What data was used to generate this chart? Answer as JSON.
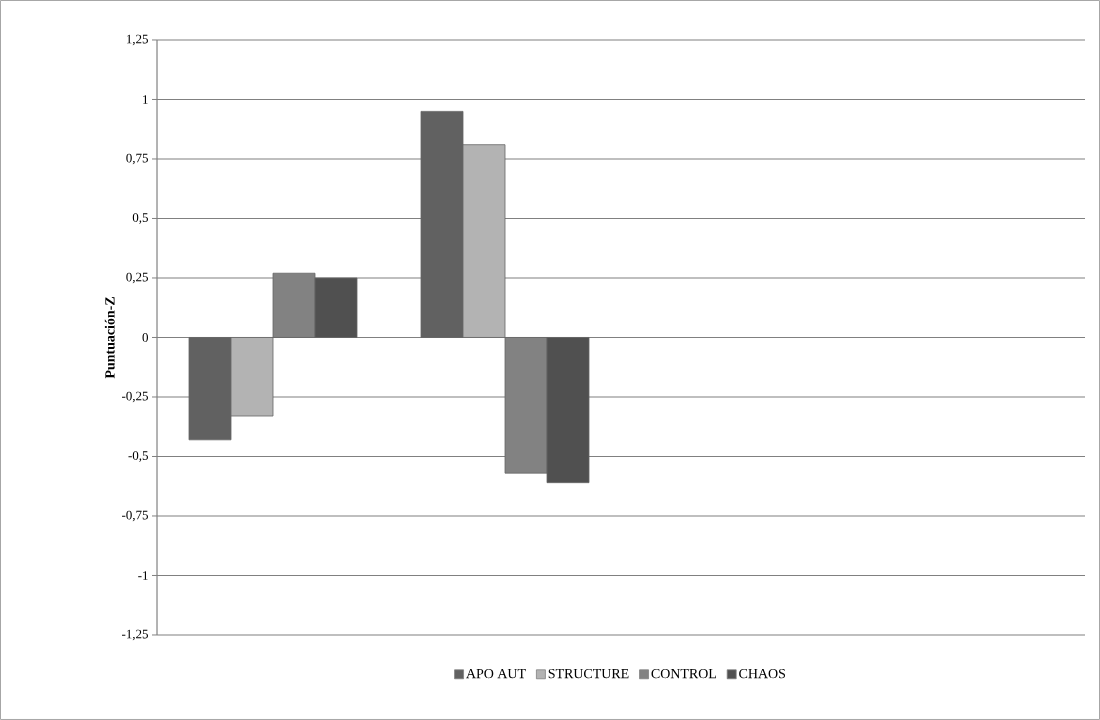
{
  "chart_data": {
    "type": "bar",
    "ylabel": "Puntuación-Z",
    "categories": [
      null,
      null,
      null,
      null
    ],
    "series": [
      {
        "name": "APO AUT",
        "color": "#616161",
        "values": [
          -0.43,
          0.95,
          null,
          null
        ]
      },
      {
        "name": "STRUCTURE",
        "color": "#b3b3b3",
        "values": [
          -0.33,
          0.81,
          null,
          null
        ]
      },
      {
        "name": "CONTROL",
        "color": "#828282",
        "values": [
          0.27,
          -0.57,
          null,
          null
        ]
      },
      {
        "name": "CHAOS",
        "color": "#505050",
        "values": [
          0.25,
          -0.61,
          null,
          null
        ]
      }
    ],
    "ylim": [
      -1.25,
      1.25
    ],
    "yticks": [
      {
        "value": -1.25,
        "label": "-1,25"
      },
      {
        "value": -1,
        "label": "-1"
      },
      {
        "value": -0.75,
        "label": "-0,75"
      },
      {
        "value": -0.5,
        "label": "-0,5"
      },
      {
        "value": -0.25,
        "label": "-0,25"
      },
      {
        "value": 0,
        "label": "0"
      },
      {
        "value": 0.25,
        "label": "0,25"
      },
      {
        "value": 0.5,
        "label": "0,5"
      },
      {
        "value": 0.75,
        "label": "0,75"
      },
      {
        "value": 1,
        "label": "1"
      },
      {
        "value": 1.25,
        "label": "1,25"
      }
    ],
    "grid": "y",
    "legend": "bottom"
  }
}
